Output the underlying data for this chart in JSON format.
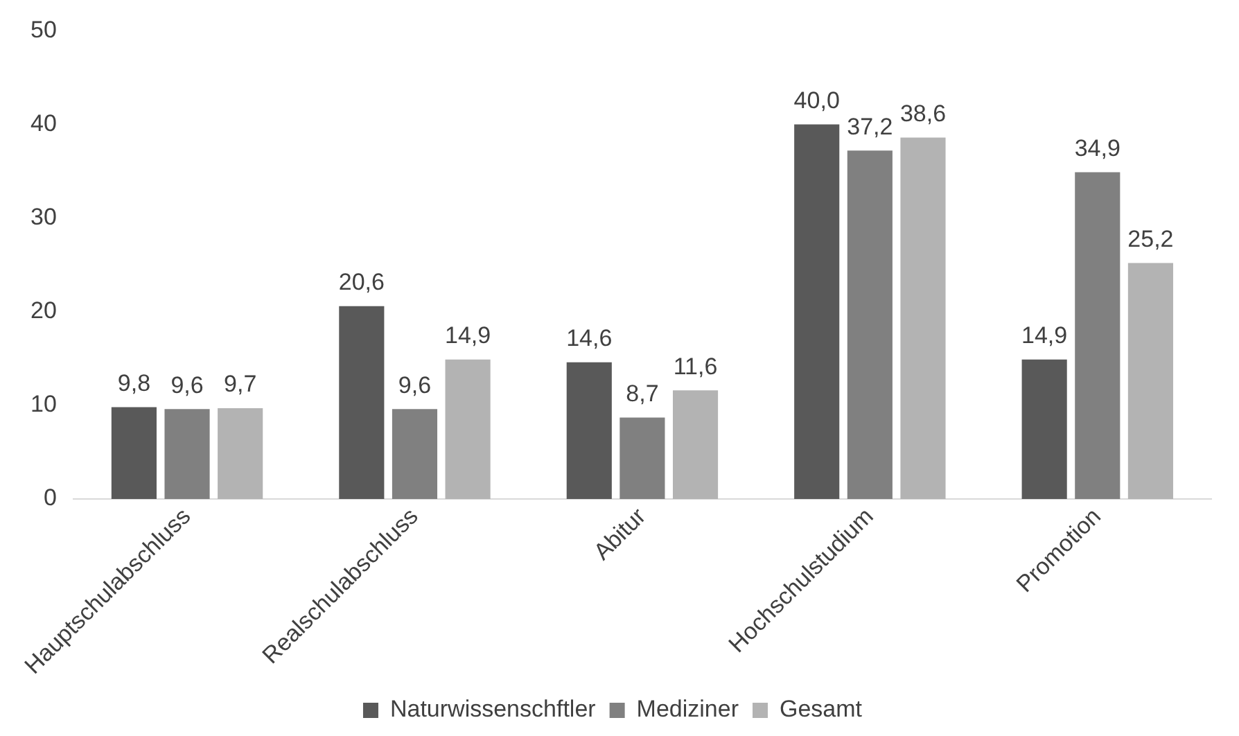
{
  "chart_data": {
    "type": "bar",
    "categories": [
      "Hauptschulabschluss",
      "Realschulabschluss",
      "Abitur",
      "Hochschulstudium",
      "Promotion"
    ],
    "series": [
      {
        "name": "Naturwissenschftler",
        "color": "#595959",
        "values": [
          9.8,
          20.6,
          14.6,
          40.0,
          14.9
        ],
        "value_labels": [
          "9,8",
          "20,6",
          "14,6",
          "40,0",
          "14,9"
        ]
      },
      {
        "name": "Mediziner",
        "color": "#808080",
        "values": [
          9.6,
          9.6,
          8.7,
          37.2,
          34.9
        ],
        "value_labels": [
          "9,6",
          "9,6",
          "8,7",
          "37,2",
          "34,9"
        ]
      },
      {
        "name": "Gesamt",
        "color": "#b3b3b3",
        "values": [
          9.7,
          14.9,
          11.6,
          38.6,
          25.2
        ],
        "value_labels": [
          "9,7",
          "14,9",
          "11,6",
          "38,6",
          "25,2"
        ]
      }
    ],
    "ylim": [
      0,
      50
    ],
    "yticks": [
      0,
      10,
      20,
      30,
      40,
      50
    ],
    "grid": false,
    "legend": "bottom"
  }
}
